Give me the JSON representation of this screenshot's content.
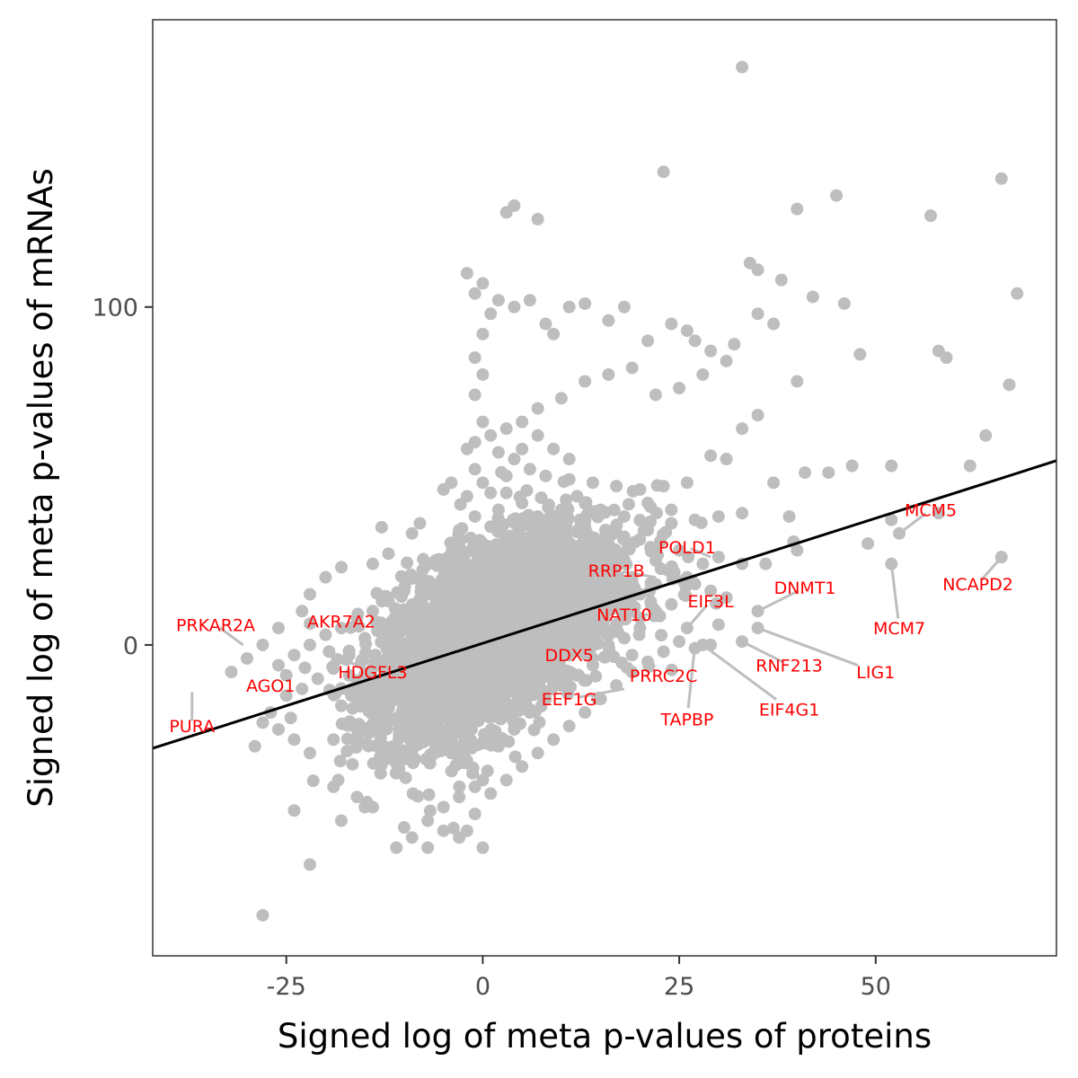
{
  "chart_data": {
    "type": "scatter",
    "title": "",
    "xlabel": "Signed log of meta p-values of proteins",
    "ylabel": "Signed log of meta p-values of mRNAs",
    "xlim": [
      -42,
      73
    ],
    "ylim": [
      -92,
      185
    ],
    "x_ticks": [
      -25,
      0,
      25,
      50
    ],
    "y_ticks": [
      0,
      100
    ],
    "x_tick_labels": [
      "-25",
      "0",
      "25",
      "50"
    ],
    "y_tick_labels": [
      "0",
      "100"
    ],
    "grid": false,
    "legend": "none",
    "point_color": "#bebebe",
    "label_color": "#ff0000",
    "leader_color": "#bebebe",
    "fit_line": {
      "color": "#000000",
      "slope": 0.74,
      "intercept": 0.5
    },
    "points": [
      [
        33,
        171
      ],
      [
        23,
        140
      ],
      [
        66,
        138
      ],
      [
        4,
        130
      ],
      [
        3,
        128
      ],
      [
        7,
        126
      ],
      [
        45,
        133
      ],
      [
        40,
        129
      ],
      [
        57,
        127
      ],
      [
        -2,
        110
      ],
      [
        -1,
        104
      ],
      [
        0,
        107
      ],
      [
        1,
        98
      ],
      [
        0,
        92
      ],
      [
        -1,
        85
      ],
      [
        0,
        80
      ],
      [
        -1,
        74
      ],
      [
        0,
        66
      ],
      [
        -2,
        58
      ],
      [
        2,
        102
      ],
      [
        4,
        100
      ],
      [
        6,
        102
      ],
      [
        8,
        95
      ],
      [
        9,
        92
      ],
      [
        11,
        100
      ],
      [
        13,
        101
      ],
      [
        16,
        96
      ],
      [
        18,
        100
      ],
      [
        21,
        90
      ],
      [
        24,
        95
      ],
      [
        26,
        93
      ],
      [
        27,
        90
      ],
      [
        29,
        87
      ],
      [
        31,
        84
      ],
      [
        34,
        113
      ],
      [
        35,
        111
      ],
      [
        38,
        108
      ],
      [
        42,
        103
      ],
      [
        46,
        101
      ],
      [
        35,
        98
      ],
      [
        37,
        95
      ],
      [
        32,
        89
      ],
      [
        28,
        80
      ],
      [
        25,
        76
      ],
      [
        22,
        74
      ],
      [
        19,
        82
      ],
      [
        16,
        80
      ],
      [
        13,
        78
      ],
      [
        10,
        73
      ],
      [
        7,
        70
      ],
      [
        5,
        66
      ],
      [
        3,
        64
      ],
      [
        1,
        62
      ],
      [
        -1,
        60
      ],
      [
        2,
        57
      ],
      [
        4,
        55
      ],
      [
        6,
        52
      ],
      [
        8,
        50
      ],
      [
        11,
        49
      ],
      [
        14,
        48
      ],
      [
        17,
        47
      ],
      [
        20,
        46
      ],
      [
        23,
        47
      ],
      [
        26,
        48
      ],
      [
        29,
        56
      ],
      [
        31,
        55
      ],
      [
        33,
        64
      ],
      [
        35,
        68
      ],
      [
        40,
        78
      ],
      [
        48,
        86
      ],
      [
        58,
        87
      ],
      [
        59,
        85
      ],
      [
        67,
        77
      ],
      [
        68,
        104
      ],
      [
        64,
        62
      ],
      [
        62,
        53
      ],
      [
        52,
        53
      ],
      [
        47,
        53
      ],
      [
        44,
        51
      ],
      [
        41,
        51
      ],
      [
        37,
        48
      ],
      [
        33,
        39
      ],
      [
        30,
        38
      ],
      [
        27,
        37
      ],
      [
        24,
        36
      ],
      [
        21,
        34
      ],
      [
        18,
        32
      ],
      [
        15,
        31
      ],
      [
        12,
        29
      ],
      [
        9,
        28
      ],
      [
        39,
        38
      ],
      [
        40,
        28
      ],
      [
        49,
        30
      ],
      [
        52,
        37
      ],
      [
        53,
        33
      ],
      [
        58,
        39
      ],
      [
        66,
        26
      ],
      [
        52,
        24
      ],
      [
        35,
        10
      ],
      [
        35,
        5
      ],
      [
        33,
        1
      ],
      [
        30,
        6
      ],
      [
        29,
        0
      ],
      [
        28,
        0
      ],
      [
        27,
        -1
      ],
      [
        26,
        5
      ],
      [
        24,
        12
      ],
      [
        22,
        10
      ],
      [
        20,
        5
      ],
      [
        18,
        2
      ],
      [
        16,
        -3
      ],
      [
        14,
        -6
      ],
      [
        12,
        -9
      ],
      [
        10,
        -12
      ],
      [
        8,
        -16
      ],
      [
        6,
        -20
      ],
      [
        4,
        -25
      ],
      [
        2,
        -30
      ],
      [
        0,
        -40
      ],
      [
        -1,
        -50
      ],
      [
        -2,
        -55
      ],
      [
        0,
        -60
      ],
      [
        -3,
        -57
      ],
      [
        -5,
        -55
      ],
      [
        -7,
        -60
      ],
      [
        -9,
        -57
      ],
      [
        -11,
        -60
      ],
      [
        -14,
        -48
      ],
      [
        -16,
        -45
      ],
      [
        -19,
        -42
      ],
      [
        -22,
        -32
      ],
      [
        -24,
        -28
      ],
      [
        -26,
        -25
      ],
      [
        -28,
        -23
      ],
      [
        -25,
        -9
      ],
      [
        -26,
        -6
      ],
      [
        -24,
        -3
      ],
      [
        -22,
        0
      ],
      [
        -20,
        3
      ],
      [
        -18,
        5
      ],
      [
        -16,
        8
      ],
      [
        -14,
        10
      ],
      [
        -12,
        13
      ],
      [
        -10,
        16
      ],
      [
        -8,
        20
      ],
      [
        -6,
        25
      ],
      [
        -4,
        30
      ],
      [
        -3,
        34
      ],
      [
        -1,
        38
      ],
      [
        -2,
        44
      ],
      [
        -4,
        48
      ],
      [
        -5,
        46
      ],
      [
        -8,
        36
      ],
      [
        -9,
        33
      ],
      [
        -12,
        27
      ],
      [
        -14,
        24
      ],
      [
        -18,
        23
      ],
      [
        -20,
        20
      ],
      [
        -22,
        15
      ],
      [
        -23,
        10
      ],
      [
        -26,
        5
      ],
      [
        -28,
        0
      ],
      [
        -30,
        -4
      ],
      [
        -32,
        -8
      ],
      [
        -25,
        -15
      ],
      [
        -27,
        -20
      ],
      [
        -29,
        -30
      ],
      [
        -28,
        -80
      ],
      [
        -22,
        -65
      ],
      [
        -24,
        -49
      ],
      [
        -18,
        -52
      ],
      [
        -15,
        -48
      ],
      [
        -10,
        -54
      ],
      [
        -7,
        -52
      ],
      [
        -5,
        -48
      ],
      [
        -3,
        -45
      ],
      [
        -1,
        -42
      ],
      [
        1,
        -44
      ],
      [
        3,
        -40
      ],
      [
        5,
        -36
      ],
      [
        7,
        -32
      ],
      [
        9,
        -28
      ],
      [
        11,
        -24
      ],
      [
        13,
        -20
      ],
      [
        15,
        -16
      ],
      [
        17,
        -12
      ],
      [
        19,
        -8
      ],
      [
        21,
        -5
      ],
      [
        23,
        -2
      ],
      [
        25,
        1
      ],
      [
        20,
        15
      ],
      [
        17,
        12
      ],
      [
        14,
        8
      ],
      [
        11,
        5
      ],
      [
        8,
        2
      ],
      [
        5,
        -1
      ],
      [
        2,
        -4
      ],
      [
        -1,
        -8
      ],
      [
        -4,
        -12
      ],
      [
        -7,
        -16
      ],
      [
        -10,
        -20
      ],
      [
        -13,
        -22
      ],
      [
        -16,
        -25
      ],
      [
        -19,
        -28
      ],
      [
        -6,
        -30
      ],
      [
        -4,
        -32
      ],
      [
        -2,
        -35
      ],
      [
        -8,
        -28
      ],
      [
        -11,
        -35
      ],
      [
        -13,
        -38
      ],
      [
        -3,
        10
      ],
      [
        -1,
        15
      ],
      [
        1,
        20
      ],
      [
        3,
        25
      ],
      [
        5,
        28
      ],
      [
        7,
        30
      ],
      [
        1,
        5
      ],
      [
        2,
        8
      ],
      [
        3,
        12
      ],
      [
        4,
        16
      ],
      [
        5,
        20
      ],
      [
        6,
        24
      ],
      [
        0,
        0
      ],
      [
        -1,
        -3
      ],
      [
        -2,
        -6
      ],
      [
        -3,
        -9
      ],
      [
        -4,
        -14
      ],
      [
        0,
        30
      ],
      [
        1,
        35
      ],
      [
        2,
        40
      ],
      [
        -2,
        22
      ],
      [
        -3,
        18
      ],
      [
        -5,
        14
      ],
      [
        -6,
        8
      ],
      [
        -7,
        4
      ],
      [
        -8,
        0
      ],
      [
        -9,
        -4
      ],
      [
        -10,
        -8
      ],
      [
        10,
        40
      ],
      [
        12,
        44
      ],
      [
        15,
        40
      ],
      [
        18,
        38
      ],
      [
        21,
        42
      ],
      [
        24,
        40
      ],
      [
        13,
        35
      ],
      [
        16,
        22
      ],
      [
        19,
        20
      ],
      [
        22,
        25
      ],
      [
        6,
        10
      ],
      [
        9,
        12
      ],
      [
        12,
        15
      ],
      [
        15,
        18
      ],
      [
        4,
        2
      ],
      [
        7,
        5
      ],
      [
        10,
        8
      ],
      [
        13,
        3
      ],
      [
        16,
        0
      ],
      [
        19,
        -3
      ],
      [
        22,
        18
      ],
      [
        8,
        -5
      ],
      [
        11,
        -2
      ],
      [
        14,
        -4
      ],
      [
        17,
        4
      ],
      [
        20,
        8
      ],
      [
        -15,
        2
      ],
      [
        -17,
        -3
      ],
      [
        -19,
        -7
      ],
      [
        -21,
        -10
      ],
      [
        -23,
        -13
      ],
      [
        -12,
        -5
      ],
      [
        -14,
        -10
      ],
      [
        -16,
        -14
      ],
      [
        -18,
        -18
      ],
      [
        -11,
        0
      ],
      [
        -13,
        5
      ],
      [
        -9,
        10
      ],
      [
        -7,
        15
      ],
      [
        -5,
        20
      ],
      [
        28,
        24
      ],
      [
        30,
        26
      ],
      [
        33,
        24
      ],
      [
        36,
        24
      ],
      [
        26,
        20
      ],
      [
        27,
        18
      ],
      [
        29,
        16
      ],
      [
        31,
        14
      ],
      [
        25,
        28
      ],
      [
        3,
        45
      ],
      [
        5,
        42
      ],
      [
        7,
        38
      ],
      [
        9,
        35
      ],
      [
        -1,
        52
      ],
      [
        0,
        48
      ],
      [
        1,
        45
      ],
      [
        3,
        50
      ],
      [
        5,
        58
      ],
      [
        7,
        62
      ],
      [
        9,
        58
      ],
      [
        11,
        55
      ]
    ],
    "labels": [
      {
        "text": "PRKAR2A",
        "x": -30.5,
        "y": 0,
        "lx": -34,
        "ly": 6
      },
      {
        "text": "AKR7A2",
        "x": -20,
        "y": 5,
        "lx": -18,
        "ly": 7
      },
      {
        "text": "AGO1",
        "x": -25.5,
        "y": -10,
        "lx": -27,
        "ly": -12
      },
      {
        "text": "HDGFL3",
        "x": -17,
        "y": -5,
        "lx": -14,
        "ly": -8
      },
      {
        "text": "PURA",
        "x": -37,
        "y": -14,
        "lx": -37,
        "ly": -24
      },
      {
        "text": "RRP1B",
        "x": 22,
        "y": 20,
        "lx": 17,
        "ly": 22
      },
      {
        "text": "POLD1",
        "x": 29,
        "y": 26,
        "lx": 26,
        "ly": 29
      },
      {
        "text": "EIF3L",
        "x": 26,
        "y": 5,
        "lx": 29,
        "ly": 13
      },
      {
        "text": "NAT10",
        "x": 21,
        "y": 9,
        "lx": 18,
        "ly": 9
      },
      {
        "text": "DNMT1",
        "x": 35,
        "y": 10,
        "lx": 41,
        "ly": 17
      },
      {
        "text": "DDX5",
        "x": 13,
        "y": -3,
        "lx": 11,
        "ly": -3
      },
      {
        "text": "PRRC2C",
        "x": 24,
        "y": -4,
        "lx": 23,
        "ly": -9
      },
      {
        "text": "EEF1G",
        "x": 18,
        "y": -13,
        "lx": 11,
        "ly": -16
      },
      {
        "text": "TAPBP",
        "x": 27,
        "y": 0,
        "lx": 26,
        "ly": -22
      },
      {
        "text": "EIF4G1",
        "x": 28,
        "y": 0,
        "lx": 39,
        "ly": -19
      },
      {
        "text": "RNF213",
        "x": 33,
        "y": 1,
        "lx": 39,
        "ly": -6
      },
      {
        "text": "LIG1",
        "x": 35,
        "y": 5,
        "lx": 50,
        "ly": -8
      },
      {
        "text": "MCM5",
        "x": 53,
        "y": 33,
        "lx": 57,
        "ly": 40
      },
      {
        "text": "MCM7",
        "x": 52,
        "y": 24,
        "lx": 53,
        "ly": 5
      },
      {
        "text": "NCAPD2",
        "x": 66,
        "y": 26,
        "lx": 63,
        "ly": 18
      }
    ]
  }
}
